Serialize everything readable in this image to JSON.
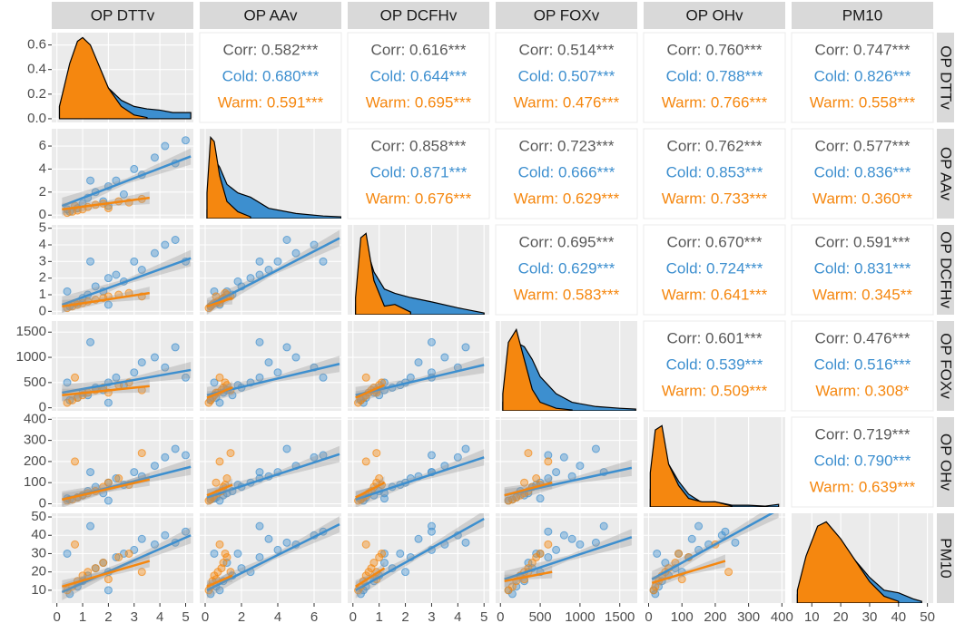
{
  "chart_data": {
    "type": "pairs",
    "variables": [
      "OP DTTv",
      "OP AAv",
      "OP DCFHv",
      "OP FOXv",
      "OP OHv",
      "PM10"
    ],
    "axes": [
      {
        "lim": [
          -0.2,
          5.3
        ],
        "ticks": [
          0,
          1,
          2,
          3,
          4,
          5
        ]
      },
      {
        "lim": [
          -0.3,
          7.5
        ],
        "ticks": [
          0,
          2,
          4,
          6
        ]
      },
      {
        "lim": [
          -0.2,
          5.2
        ],
        "ticks": [
          0,
          1,
          2,
          3,
          4,
          5
        ]
      },
      {
        "lim": [
          -60,
          1720
        ],
        "ticks": [
          0,
          500,
          1000,
          1500
        ]
      },
      {
        "lim": [
          -15,
          410
        ],
        "ticks": [
          0,
          100,
          200,
          300,
          400
        ]
      },
      {
        "lim": [
          3,
          52
        ],
        "ticks": [
          10,
          20,
          30,
          40,
          50
        ]
      }
    ],
    "corr_color": "#595959",
    "groups": [
      {
        "color": "#3d8fcf",
        "samples": [
          [
            0.5,
            0.8,
            1.0,
            1.2,
            1.5,
            1.8,
            2.0,
            2.3,
            2.6,
            3.0,
            3.3,
            3.8,
            4.2,
            4.6,
            5.0,
            0.4,
            1.3,
            2.0
          ],
          [
            0.3,
            0.6,
            1.0,
            1.5,
            2.0,
            1.2,
            2.5,
            3.0,
            1.8,
            4.0,
            3.5,
            5.0,
            6.0,
            4.5,
            6.5,
            0.5,
            3.0,
            0.8
          ],
          [
            0.3,
            0.5,
            0.8,
            1.0,
            1.5,
            1.2,
            2.0,
            2.2,
            1.8,
            3.0,
            2.5,
            3.5,
            4.0,
            4.3,
            3.0,
            1.2,
            3.0,
            0.4
          ],
          [
            150,
            200,
            300,
            250,
            400,
            350,
            500,
            600,
            450,
            700,
            900,
            1000,
            800,
            1200,
            600,
            500,
            1300,
            100
          ],
          [
            20,
            30,
            40,
            60,
            80,
            50,
            100,
            120,
            90,
            150,
            130,
            180,
            220,
            260,
            230,
            25,
            150,
            15
          ],
          [
            8,
            12,
            15,
            18,
            22,
            25,
            20,
            28,
            30,
            32,
            38,
            35,
            40,
            36,
            42,
            30,
            45,
            10
          ]
        ]
      },
      {
        "color": "#f5870f",
        "samples": [
          [
            0.4,
            0.6,
            0.8,
            1.0,
            1.2,
            1.5,
            1.8,
            2.0,
            2.4,
            2.8,
            3.3,
            0.7
          ],
          [
            0.2,
            0.3,
            0.4,
            0.5,
            0.7,
            0.9,
            1.0,
            0.6,
            1.2,
            1.1,
            1.4,
            0.8
          ],
          [
            0.2,
            0.3,
            0.4,
            0.5,
            0.6,
            0.7,
            0.8,
            0.9,
            1.0,
            1.1,
            0.9,
            0.5
          ],
          [
            100,
            150,
            200,
            250,
            300,
            350,
            400,
            300,
            450,
            500,
            350,
            600
          ],
          [
            15,
            20,
            30,
            40,
            50,
            60,
            80,
            100,
            120,
            90,
            240,
            200
          ],
          [
            10,
            12,
            15,
            18,
            20,
            22,
            25,
            16,
            28,
            30,
            20,
            35
          ]
        ]
      }
    ],
    "densities": [
      {
        "ylim": [
          -0.03,
          0.7
        ],
        "yticks": [
          {
            "value": 0,
            "label": "0.0"
          },
          0.2,
          0.4,
          0.6
        ],
        "x": [
          0.1,
          0.5,
          0.8,
          1.0,
          1.3,
          1.6,
          2.0,
          2.5,
          3.0,
          3.5,
          4.0,
          4.5,
          5.2
        ],
        "series": [
          [
            0.1,
            0.4,
            0.6,
            0.65,
            0.55,
            0.4,
            0.25,
            0.15,
            0.1,
            0.08,
            0.07,
            0.05,
            0.05
          ],
          [
            0.1,
            0.45,
            0.63,
            0.66,
            0.6,
            0.45,
            0.25,
            0.1,
            0.03,
            0.01,
            null,
            null,
            null
          ]
        ]
      },
      {
        "ylim": [
          0,
          1.05
        ],
        "x": [
          0.1,
          0.3,
          0.5,
          0.8,
          1.2,
          1.8,
          2.5,
          3.5,
          5,
          6.5,
          7.5
        ],
        "series": [
          [
            0.1,
            0.5,
            0.7,
            0.6,
            0.4,
            0.3,
            0.25,
            0.12,
            0.06,
            0.03,
            0.02
          ],
          [
            0.3,
            0.95,
            0.9,
            0.5,
            0.2,
            0.08,
            0.02,
            null,
            null,
            null,
            null
          ]
        ]
      },
      {
        "ylim": [
          0,
          1.05
        ],
        "x": [
          0.1,
          0.3,
          0.5,
          0.8,
          1.2,
          1.6,
          2.2,
          3,
          4,
          5
        ],
        "series": [
          [
            0.1,
            0.6,
            0.8,
            0.5,
            0.3,
            0.25,
            0.2,
            0.15,
            0.08,
            0.02
          ],
          [
            0.2,
            0.9,
            0.95,
            0.4,
            0.1,
            0.12,
            0.03,
            null,
            null,
            null
          ]
        ]
      },
      {
        "ylim": [
          0,
          1.05
        ],
        "x": [
          30,
          100,
          200,
          300,
          400,
          500,
          700,
          900,
          1200,
          1500,
          1700
        ],
        "series": [
          [
            0.1,
            0.5,
            0.8,
            0.75,
            0.6,
            0.4,
            0.2,
            0.1,
            0.05,
            0.03,
            0.02
          ],
          [
            0.2,
            0.8,
            0.95,
            0.6,
            0.25,
            0.1,
            0.03,
            0.01,
            null,
            null,
            null
          ]
        ]
      },
      {
        "ylim": [
          0,
          1.05
        ],
        "x": [
          5,
          20,
          40,
          60,
          90,
          120,
          160,
          200,
          250,
          300,
          350,
          390
        ],
        "series": [
          [
            0.2,
            0.6,
            0.8,
            0.5,
            0.3,
            0.15,
            0.05,
            0.06,
            0.02,
            0.02,
            0.01,
            0.03
          ],
          [
            0.4,
            0.9,
            0.95,
            0.5,
            0.25,
            0.1,
            0.06,
            0.06,
            0.01,
            null,
            null,
            null
          ]
        ]
      },
      {
        "ylim": [
          0,
          1.05
        ],
        "x": [
          5,
          8,
          12,
          15,
          20,
          25,
          30,
          35,
          40,
          45,
          48
        ],
        "series": [
          [
            0.1,
            0.5,
            0.85,
            0.9,
            0.7,
            0.5,
            0.3,
            0.15,
            0.12,
            0.05,
            0.02
          ],
          [
            0.15,
            0.55,
            0.9,
            0.95,
            0.75,
            0.5,
            0.25,
            0.08,
            0.02,
            null,
            null
          ]
        ]
      }
    ],
    "fits": [
      [
        [
          {
            "x": [
              0.2,
              5.2
            ],
            "y": [
              0.8,
              5.1
            ]
          },
          {
            "x": [
              0.2,
              3.6
            ],
            "y": [
              0.5,
              1.5
            ]
          }
        ]
      ],
      [
        [
          {
            "x": [
              0.2,
              5.2
            ],
            "y": [
              0.4,
              3.2
            ]
          },
          {
            "x": [
              0.2,
              3.6
            ],
            "y": [
              0.3,
              1.1
            ]
          }
        ],
        [
          {
            "x": [
              0.1,
              7.4
            ],
            "y": [
              0.3,
              4.4
            ]
          },
          {
            "x": [
              0.1,
              1.5
            ],
            "y": [
              0.3,
              0.8
            ]
          }
        ]
      ],
      [
        [
          {
            "x": [
              0.2,
              5.2
            ],
            "y": [
              300,
              750
            ]
          },
          {
            "x": [
              0.2,
              3.6
            ],
            "y": [
              250,
              430
            ]
          }
        ],
        [
          {
            "x": [
              0.1,
              7.4
            ],
            "y": [
              250,
              870
            ]
          },
          {
            "x": [
              0.1,
              1.5
            ],
            "y": [
              200,
              400
            ]
          }
        ],
        [
          {
            "x": [
              0.1,
              5
            ],
            "y": [
              250,
              850
            ]
          },
          {
            "x": [
              0.1,
              1.2
            ],
            "y": [
              200,
              450
            ]
          }
        ]
      ],
      [
        [
          {
            "x": [
              0.2,
              5.2
            ],
            "y": [
              20,
              175
            ]
          },
          {
            "x": [
              0.2,
              3.6
            ],
            "y": [
              20,
              115
            ]
          }
        ],
        [
          {
            "x": [
              0.1,
              7.4
            ],
            "y": [
              30,
              235
            ]
          },
          {
            "x": [
              0.1,
              1.5
            ],
            "y": [
              40,
              90
            ]
          }
        ],
        [
          {
            "x": [
              0.1,
              5
            ],
            "y": [
              20,
              220
            ]
          },
          {
            "x": [
              0.1,
              1.2
            ],
            "y": [
              30,
              100
            ]
          }
        ],
        [
          {
            "x": [
              50,
              1650
            ],
            "y": [
              40,
              170
            ]
          },
          {
            "x": [
              50,
              650
            ],
            "y": [
              40,
              100
            ]
          }
        ]
      ],
      [
        [
          {
            "x": [
              0.2,
              5.2
            ],
            "y": [
              9,
              40
            ]
          },
          {
            "x": [
              0.2,
              3.6
            ],
            "y": [
              12,
              26
            ]
          }
        ],
        [
          {
            "x": [
              0.1,
              7.4
            ],
            "y": [
              10,
              46
            ]
          },
          {
            "x": [
              0.1,
              1.5
            ],
            "y": [
              12,
              18
            ]
          }
        ],
        [
          {
            "x": [
              0.1,
              5
            ],
            "y": [
              10,
              49
            ]
          },
          {
            "x": [
              0.1,
              1.2
            ],
            "y": [
              12,
              22
            ]
          }
        ],
        [
          {
            "x": [
              50,
              1650
            ],
            "y": [
              16,
              39
            ]
          },
          {
            "x": [
              50,
              650
            ],
            "y": [
              15,
              20
            ]
          }
        ],
        [
          {
            "x": [
              10,
              390
            ],
            "y": [
              16,
              54
            ]
          },
          {
            "x": [
              10,
              230
            ],
            "y": [
              14,
              26
            ]
          }
        ]
      ]
    ],
    "correlations": [
      [
        [
          "Corr: 0.582***",
          "Cold: 0.680***",
          "Warm: 0.591***"
        ],
        [
          "Corr: 0.616***",
          "Cold: 0.644***",
          "Warm: 0.695***"
        ],
        [
          "Corr: 0.514***",
          "Cold: 0.507***",
          "Warm: 0.476***"
        ],
        [
          "Corr: 0.760***",
          "Cold: 0.788***",
          "Warm: 0.766***"
        ],
        [
          "Corr: 0.747***",
          "Cold: 0.826***",
          "Warm: 0.558***"
        ]
      ],
      [
        [
          "Corr: 0.858***",
          "Cold: 0.871***",
          "Warm: 0.676***"
        ],
        [
          "Corr: 0.723***",
          "Cold: 0.666***",
          "Warm: 0.629***"
        ],
        [
          "Corr: 0.762***",
          "Cold: 0.853***",
          "Warm: 0.733***"
        ],
        [
          "Corr: 0.577***",
          "Cold: 0.836***",
          "Warm: 0.360**"
        ]
      ],
      [
        [
          "Corr: 0.695***",
          "Cold: 0.629***",
          "Warm: 0.583***"
        ],
        [
          "Corr: 0.670***",
          "Cold: 0.724***",
          "Warm: 0.641***"
        ],
        [
          "Corr: 0.591***",
          "Cold: 0.831***",
          "Warm: 0.345**"
        ]
      ],
      [
        [
          "Corr: 0.601***",
          "Cold: 0.539***",
          "Warm: 0.509***"
        ],
        [
          "Corr: 0.476***",
          "Cold: 0.516***",
          "Warm: 0.308*"
        ]
      ],
      [
        [
          "Corr: 0.719***",
          "Cold: 0.790***",
          "Warm: 0.639***"
        ]
      ]
    ]
  }
}
